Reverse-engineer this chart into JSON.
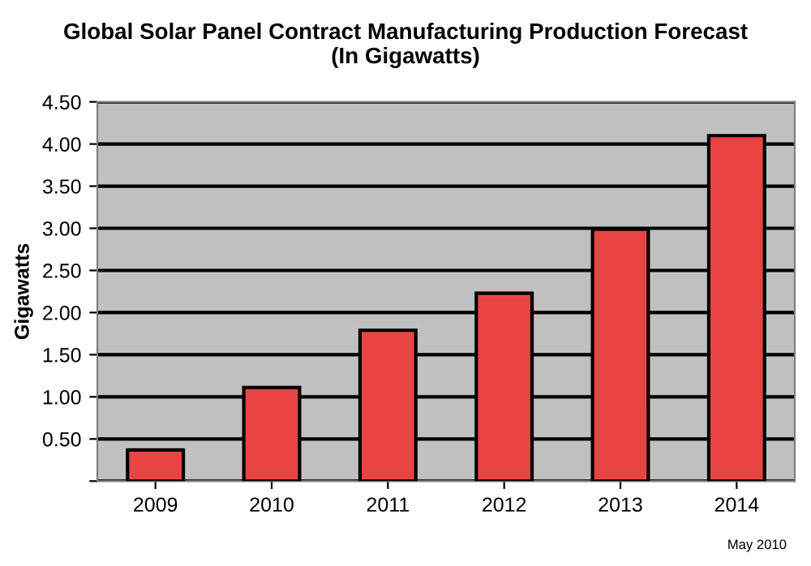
{
  "chart_data": {
    "type": "bar",
    "title": "Global Solar Panel Contract Manufacturing Production Forecast\n(In Gigawatts)",
    "ylabel": "Gigawatts",
    "categories": [
      "2009",
      "2010",
      "2011",
      "2012",
      "2013",
      "2014"
    ],
    "values": [
      0.37,
      1.11,
      1.79,
      2.23,
      2.99,
      4.1
    ],
    "color": "#e84444",
    "ylim": [
      0,
      4.5
    ],
    "yticks": [
      {
        "value": 0,
        "label": null
      },
      {
        "value": 0.5,
        "label": "0.50"
      },
      {
        "value": 1.0,
        "label": "1.00"
      },
      {
        "value": 1.5,
        "label": "1.50"
      },
      {
        "value": 2.0,
        "label": "2.00"
      },
      {
        "value": 2.5,
        "label": "2.50"
      },
      {
        "value": 3.0,
        "label": "3.00"
      },
      {
        "value": 3.5,
        "label": "3.50"
      },
      {
        "value": 4.0,
        "label": "4.00"
      },
      {
        "value": 4.5,
        "label": "4.50"
      }
    ],
    "grid": "y",
    "legend": false,
    "annotations": [
      "May 2010"
    ]
  }
}
